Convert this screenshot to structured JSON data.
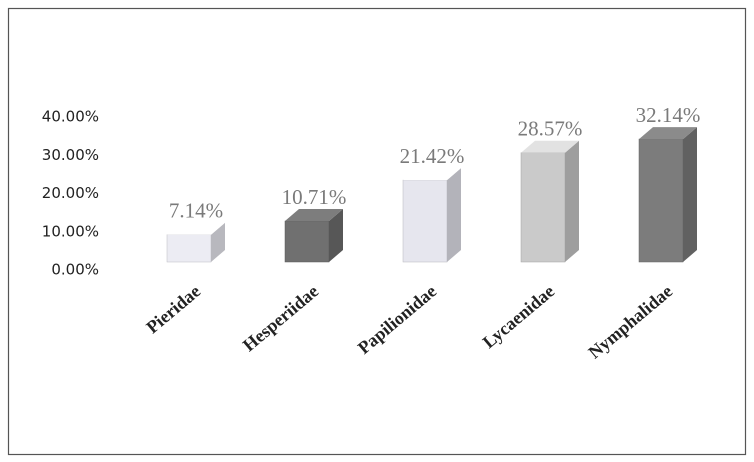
{
  "chart_data": {
    "type": "bar3d",
    "categories": [
      "Pieridae",
      "Hesperiidae",
      "Papilionidae",
      "Lycaenidae",
      "Nymphalidae"
    ],
    "values": [
      7.14,
      10.71,
      21.42,
      28.57,
      32.14
    ],
    "value_labels": [
      "7.14%",
      "10.71%",
      "21.42%",
      "28.57%",
      "32.14%"
    ],
    "colors": [
      "#ececf3",
      "#707070",
      "#e6e6ee",
      "#cacaca",
      "#7c7c7c"
    ],
    "ylim": [
      0,
      40
    ],
    "yticks": [
      {
        "value": 0,
        "label": "0.00%"
      },
      {
        "value": 10,
        "label": "10.00%"
      },
      {
        "value": 20,
        "label": "20.00%"
      },
      {
        "value": 30,
        "label": "30.00%"
      },
      {
        "value": 40,
        "label": "40.00%"
      }
    ]
  }
}
